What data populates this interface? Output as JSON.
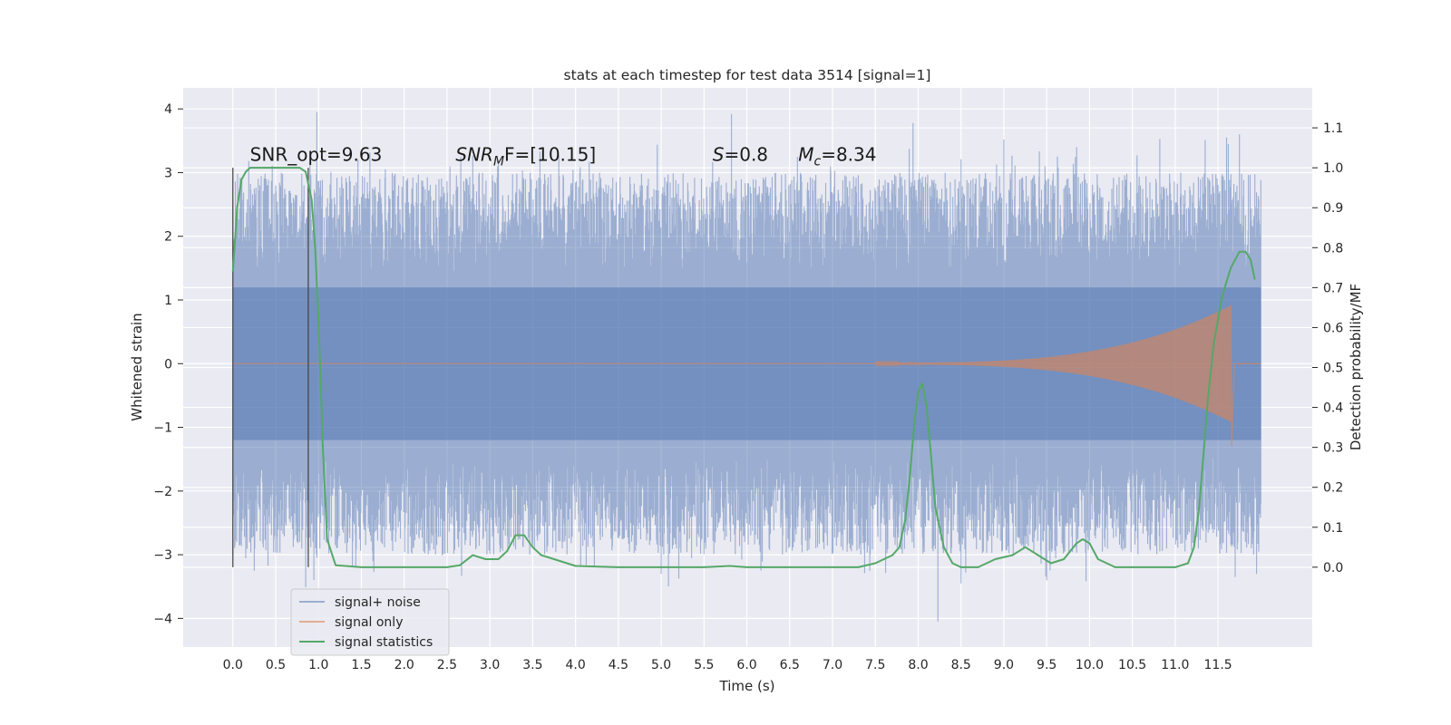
{
  "chart_data": {
    "type": "line",
    "title": "stats at each timestep for test data 3514 [signal=1]",
    "xlabel": "Time (s)",
    "ylabel": "Whitened strain",
    "ylabel_right": "Detection probability/MF",
    "xlim": [
      -0.58,
      12.6
    ],
    "ylim": [
      -4.45,
      4.33
    ],
    "ylim_right": [
      -0.2,
      1.2
    ],
    "x_ticks": [
      0.0,
      0.5,
      1.0,
      1.5,
      2.0,
      2.5,
      3.0,
      3.5,
      4.0,
      4.5,
      5.0,
      5.5,
      6.0,
      6.5,
      7.0,
      7.5,
      8.0,
      8.5,
      9.0,
      9.5,
      10.0,
      10.5,
      11.0,
      11.5
    ],
    "x_tick_labels": [
      "0.0",
      "0.5",
      "1.0",
      "1.5",
      "2.0",
      "2.5",
      "3.0",
      "3.5",
      "4.0",
      "4.5",
      "5.0",
      "5.5",
      "6.0",
      "6.5",
      "7.0",
      "7.5",
      "8.0",
      "8.5",
      "9.0",
      "9.5",
      "10.0",
      "10.5",
      "11.0",
      "11.5"
    ],
    "y_ticks": [
      -4,
      -3,
      -2,
      -1,
      0,
      1,
      2,
      3,
      4
    ],
    "y_tick_labels": [
      "−4",
      "−3",
      "−2",
      "−1",
      "0",
      "1",
      "2",
      "3",
      "4"
    ],
    "y2_ticks": [
      0.0,
      0.1,
      0.2,
      0.3,
      0.4,
      0.5,
      0.6,
      0.7,
      0.8,
      0.9,
      1.0,
      1.1
    ],
    "y2_tick_labels": [
      "0.0",
      "0.1",
      "0.2",
      "0.3",
      "0.4",
      "0.5",
      "0.6",
      "0.7",
      "0.8",
      "0.9",
      "1.0",
      "1.1"
    ],
    "grid": true,
    "legend_position": "lower-left",
    "colors": {
      "background": "#eaeaf2",
      "grid": "#ffffff",
      "noise": "#4c72b0",
      "signal": "#dd8452",
      "stats": "#55a868",
      "markers": "#404040"
    },
    "series": [
      {
        "name": "signal+ noise",
        "axis": "left",
        "x_range": [
          0.0,
          12.0
        ],
        "envelope_core": 1.2,
        "peaks": [
          {
            "x": 0.1,
            "y": 2.4
          },
          {
            "x": 0.9,
            "y": 3.3
          },
          {
            "x": 0.98,
            "y": 3.95
          },
          {
            "x": 1.78,
            "y": 3.05
          },
          {
            "x": 2.66,
            "y": 3.25
          },
          {
            "x": 3.1,
            "y": 3.2
          },
          {
            "x": 5.82,
            "y": 3.92
          },
          {
            "x": 7.94,
            "y": 3.78
          },
          {
            "x": 9.0,
            "y": 3.52
          },
          {
            "x": 9.85,
            "y": 3.4
          },
          {
            "x": 11.6,
            "y": 3.55
          },
          {
            "x": 11.75,
            "y": 3.6
          },
          {
            "x": 0.25,
            "y": -3.25
          },
          {
            "x": 1.4,
            "y": -2.8
          },
          {
            "x": 5.0,
            "y": -3.3
          },
          {
            "x": 8.23,
            "y": -4.05
          },
          {
            "x": 8.5,
            "y": -3.45
          },
          {
            "x": 9.5,
            "y": -3.4
          },
          {
            "x": 11.7,
            "y": -3.35
          }
        ]
      },
      {
        "name": "signal only",
        "axis": "left",
        "x_range": [
          0.0,
          12.0
        ],
        "chirp_start": 7.5,
        "chirp_peak_x": 11.65,
        "chirp_peak_amplitude": 0.9,
        "chirp_min": -1.3
      },
      {
        "name": "signal statistics",
        "axis": "right",
        "x": [
          0.0,
          0.05,
          0.1,
          0.15,
          0.2,
          0.3,
          0.5,
          0.7,
          0.78,
          0.85,
          0.88,
          0.92,
          0.96,
          1.0,
          1.05,
          1.1,
          1.2,
          1.5,
          2.0,
          2.5,
          2.65,
          2.8,
          2.95,
          3.1,
          3.2,
          3.3,
          3.4,
          3.5,
          3.6,
          3.75,
          4.0,
          4.5,
          5.0,
          5.5,
          5.8,
          6.0,
          6.5,
          7.0,
          7.3,
          7.5,
          7.6,
          7.7,
          7.78,
          7.85,
          7.9,
          7.95,
          8.0,
          8.05,
          8.1,
          8.15,
          8.2,
          8.3,
          8.4,
          8.5,
          8.7,
          8.9,
          9.1,
          9.25,
          9.4,
          9.55,
          9.7,
          9.85,
          9.92,
          10.0,
          10.1,
          10.3,
          10.6,
          11.0,
          11.15,
          11.22,
          11.28,
          11.33,
          11.38,
          11.45,
          11.55,
          11.65,
          11.75,
          11.82,
          11.88,
          11.93
        ],
        "values": [
          0.74,
          0.9,
          0.97,
          0.99,
          1.0,
          1.0,
          1.0,
          1.0,
          1.0,
          0.99,
          0.96,
          0.92,
          0.8,
          0.62,
          0.3,
          0.07,
          0.005,
          0.0,
          0.0,
          0.0,
          0.005,
          0.03,
          0.02,
          0.02,
          0.04,
          0.08,
          0.08,
          0.05,
          0.03,
          0.02,
          0.003,
          0.0,
          0.0,
          0.0,
          0.003,
          0.0,
          0.0,
          0.0,
          0.0,
          0.01,
          0.02,
          0.03,
          0.05,
          0.12,
          0.22,
          0.35,
          0.44,
          0.46,
          0.4,
          0.28,
          0.15,
          0.05,
          0.01,
          0.0,
          0.0,
          0.02,
          0.03,
          0.05,
          0.03,
          0.01,
          0.02,
          0.06,
          0.07,
          0.06,
          0.02,
          0.0,
          0.0,
          0.0,
          0.01,
          0.05,
          0.15,
          0.28,
          0.42,
          0.56,
          0.68,
          0.75,
          0.79,
          0.79,
          0.77,
          0.72
        ]
      }
    ],
    "vertical_markers": [
      0.0,
      0.88
    ],
    "annotations": [
      {
        "text": "SNR_opt=9.63",
        "x": 0.2,
        "y": 3.1
      },
      {
        "parts": [
          "SNR",
          "M",
          "F=[10.15]"
        ],
        "x": 2.6,
        "y": 3.1
      },
      {
        "parts": [
          "S",
          "=0.8"
        ],
        "x": 5.6,
        "y": 3.1
      },
      {
        "parts": [
          "M",
          "c",
          "=8.34"
        ],
        "x": 6.6,
        "y": 3.1
      }
    ],
    "legend": [
      "signal+ noise",
      "signal only",
      "signal statistics"
    ]
  }
}
